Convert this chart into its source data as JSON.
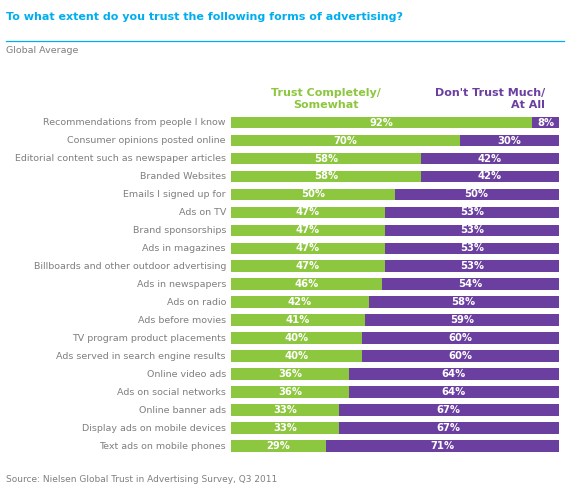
{
  "title": "To what extent do you trust the following forms of advertising?",
  "subtitle": "Global Average",
  "source": "Source: Nielsen Global Trust in Advertising Survey, Q3 2011",
  "col1_header": "Trust Completely/\nSomewhat",
  "col2_header": "Don't Trust Much/\nAt All",
  "categories": [
    "Recommendations from people I know",
    "Consumer opinions posted online",
    "Editorial content such as newspaper articles",
    "Branded Websites",
    "Emails I signed up for",
    "Ads on TV",
    "Brand sponsorships",
    "Ads in magazines",
    "Billboards and other outdoor advertising",
    "Ads in newspapers",
    "Ads on radio",
    "Ads before movies",
    "TV program product placements",
    "Ads served in search engine results",
    "Online video ads",
    "Ads on social networks",
    "Online banner ads",
    "Display ads on mobile devices",
    "Text ads on mobile phones"
  ],
  "trust_values": [
    92,
    70,
    58,
    58,
    50,
    47,
    47,
    47,
    47,
    46,
    42,
    41,
    40,
    40,
    36,
    36,
    33,
    33,
    29
  ],
  "distrust_values": [
    8,
    30,
    42,
    42,
    50,
    53,
    53,
    53,
    53,
    54,
    58,
    59,
    60,
    60,
    64,
    64,
    67,
    67,
    71
  ],
  "trust_color": "#8dc63f",
  "distrust_color": "#6b3fa0",
  "title_color": "#00aeef",
  "col1_header_color": "#8dc63f",
  "col2_header_color": "#6b3fa0",
  "category_color": "#7f7f7f",
  "bar_text_color": "#ffffff",
  "source_color": "#7f7f7f",
  "background_color": "#ffffff",
  "separator_color": "#00aeef",
  "bar_height": 0.65,
  "title_fontsize": 8.0,
  "header_fontsize": 8.0,
  "category_fontsize": 6.8,
  "bar_label_fontsize": 7.2,
  "source_fontsize": 6.5
}
